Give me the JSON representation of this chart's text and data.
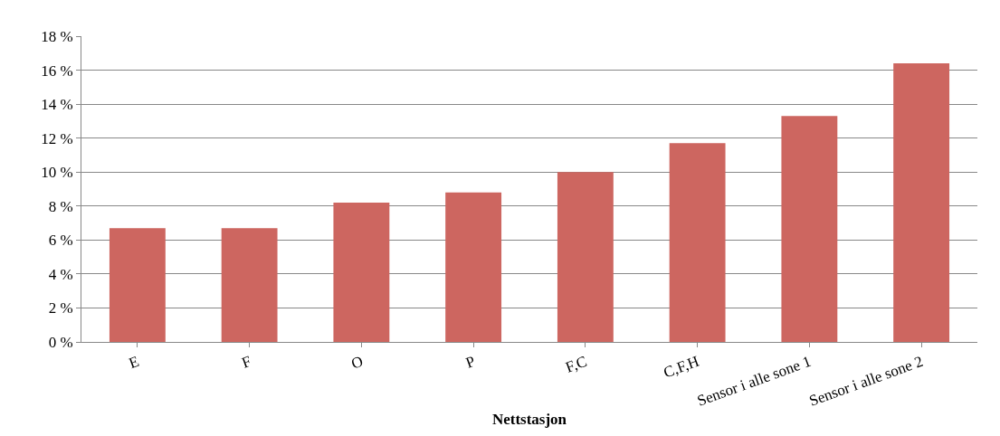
{
  "chart_data": {
    "type": "bar",
    "xlabel": "Nettstasjon",
    "categories": [
      "E",
      "F",
      "O",
      "P",
      "F,C",
      "C,F,H",
      "Sensor i alle sone 1",
      "Sensor i alle sone 2"
    ],
    "values": [
      6.7,
      6.7,
      8.2,
      8.8,
      10,
      11.7,
      13.3,
      16.4
    ],
    "color": "#cd6660",
    "ylim": [
      0,
      18
    ],
    "yticks": [
      {
        "value": 0,
        "label": "0 %"
      },
      {
        "value": 2,
        "label": "2 %"
      },
      {
        "value": 4,
        "label": "4 %"
      },
      {
        "value": 6,
        "label": "6 %"
      },
      {
        "value": 8,
        "label": "8 %"
      },
      {
        "value": 10,
        "label": "10 %"
      },
      {
        "value": 12,
        "label": "12 %"
      },
      {
        "value": 14,
        "label": "14 %"
      },
      {
        "value": 16,
        "label": "16 %"
      },
      {
        "value": 18,
        "label": "18 %"
      }
    ],
    "grid": "y"
  }
}
